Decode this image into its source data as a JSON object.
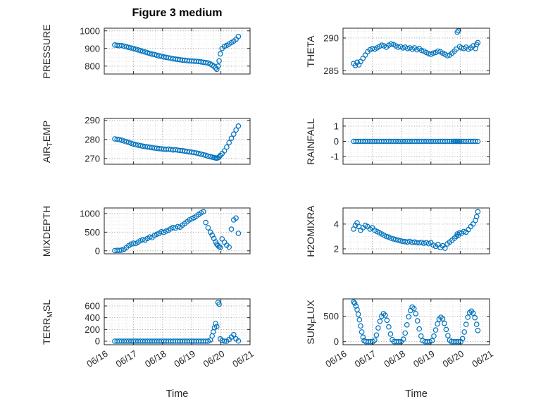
{
  "title": "Figure 3 medium",
  "xlabel": "Time",
  "marker_color": "#0072BD",
  "x_axis": {
    "lim": [
      0,
      5
    ],
    "ticks": [
      0,
      1,
      2,
      3,
      4,
      5
    ],
    "labels": [
      "06/16",
      "06/17",
      "06/18",
      "06/19",
      "06/20",
      "06/21"
    ],
    "minor_step": 0.25
  },
  "chart_data": [
    {
      "type": "scatter",
      "name": "PRESSURE",
      "row": 0,
      "col": 0,
      "ylabel_text": "PRESSURE",
      "ylabel_parts": [
        {
          "t": "PRESSURE"
        }
      ],
      "ylim": [
        755,
        1015
      ],
      "yticks": [
        800,
        900,
        1000
      ],
      "ytick_labels": [
        "800",
        "900",
        "1000"
      ],
      "y_minor_step": 25,
      "x": [
        0.36,
        0.44,
        0.52,
        0.6,
        0.68,
        0.76,
        0.84,
        0.92,
        1.0,
        1.08,
        1.16,
        1.24,
        1.32,
        1.4,
        1.48,
        1.56,
        1.64,
        1.72,
        1.8,
        1.88,
        1.96,
        2.04,
        2.12,
        2.2,
        2.28,
        2.36,
        2.44,
        2.52,
        2.6,
        2.68,
        2.76,
        2.84,
        2.92,
        3.0,
        3.08,
        3.16,
        3.24,
        3.32,
        3.4,
        3.48,
        3.56,
        3.64,
        3.7,
        3.76,
        3.82,
        3.86,
        3.9,
        3.94,
        3.98,
        4.04,
        4.12,
        4.2,
        4.28,
        4.36,
        4.44,
        4.52,
        4.6
      ],
      "y": [
        920,
        918,
        916,
        917,
        913,
        910,
        906,
        903,
        900,
        896,
        892,
        888,
        884,
        880,
        876,
        872,
        868,
        866,
        862,
        858,
        856,
        852,
        850,
        847,
        845,
        842,
        840,
        838,
        836,
        834,
        833,
        831,
        830,
        829,
        828,
        827,
        826,
        824,
        822,
        820,
        818,
        812,
        806,
        800,
        790,
        782,
        800,
        830,
        870,
        900,
        912,
        918,
        925,
        933,
        942,
        952,
        968
      ]
    },
    {
      "type": "scatter",
      "name": "THETA",
      "row": 0,
      "col": 1,
      "ylabel_text": "THETA",
      "ylabel_parts": [
        {
          "t": "THETA"
        }
      ],
      "ylim": [
        284.5,
        291.5
      ],
      "yticks": [
        285,
        290
      ],
      "ytick_labels": [
        "285",
        "290"
      ],
      "y_minor_step": 1,
      "x": [
        0.36,
        0.42,
        0.48,
        0.54,
        0.6,
        0.68,
        0.76,
        0.84,
        0.92,
        1.0,
        1.08,
        1.16,
        1.24,
        1.32,
        1.4,
        1.48,
        1.56,
        1.64,
        1.72,
        1.8,
        1.88,
        1.96,
        2.04,
        2.12,
        2.2,
        2.28,
        2.36,
        2.44,
        2.52,
        2.6,
        2.68,
        2.76,
        2.84,
        2.92,
        3.0,
        3.08,
        3.16,
        3.24,
        3.32,
        3.4,
        3.48,
        3.56,
        3.64,
        3.72,
        3.8,
        3.86,
        3.9,
        3.94,
        3.98,
        4.04,
        4.12,
        4.2,
        4.28,
        4.36,
        4.44,
        4.52,
        4.56,
        4.6
      ],
      "y": [
        286.1,
        285.8,
        286.3,
        285.9,
        286.4,
        286.9,
        287.4,
        287.9,
        288.2,
        288.4,
        288.3,
        288.5,
        288.7,
        288.9,
        288.8,
        288.6,
        288.9,
        289.1,
        289.0,
        288.8,
        288.6,
        288.7,
        288.5,
        288.6,
        288.4,
        288.5,
        288.3,
        288.5,
        288.2,
        288.4,
        288.1,
        288.0,
        287.8,
        287.6,
        287.5,
        287.7,
        287.8,
        288.0,
        287.9,
        287.7,
        287.5,
        287.3,
        287.4,
        287.7,
        288.0,
        288.3,
        290.9,
        291.1,
        288.7,
        288.5,
        288.4,
        288.6,
        288.3,
        288.5,
        288.8,
        288.4,
        289.0,
        289.3
      ]
    },
    {
      "type": "scatter",
      "name": "AIR_TEMP",
      "row": 1,
      "col": 0,
      "ylabel_text": "AIR_TEMP",
      "ylabel_parts": [
        {
          "t": "AIR"
        },
        {
          "t": "T",
          "sub": true
        },
        {
          "t": "EMP"
        }
      ],
      "ylim": [
        267,
        291
      ],
      "yticks": [
        270,
        280,
        290
      ],
      "ytick_labels": [
        "270",
        "280",
        "290"
      ],
      "y_minor_step": 2.5,
      "x": [
        0.36,
        0.44,
        0.52,
        0.6,
        0.68,
        0.76,
        0.84,
        0.92,
        1.0,
        1.08,
        1.16,
        1.24,
        1.32,
        1.4,
        1.48,
        1.56,
        1.64,
        1.72,
        1.8,
        1.88,
        1.96,
        2.04,
        2.12,
        2.2,
        2.28,
        2.36,
        2.44,
        2.52,
        2.6,
        2.68,
        2.76,
        2.84,
        2.92,
        3.0,
        3.08,
        3.16,
        3.24,
        3.32,
        3.4,
        3.48,
        3.56,
        3.64,
        3.7,
        3.76,
        3.82,
        3.86,
        3.9,
        3.94,
        3.98,
        4.04,
        4.12,
        4.2,
        4.28,
        4.36,
        4.44,
        4.52,
        4.6
      ],
      "y": [
        280.3,
        280.1,
        279.9,
        279.6,
        279.2,
        278.8,
        278.4,
        278.0,
        277.6,
        277.3,
        277.0,
        276.8,
        276.5,
        276.3,
        276.1,
        275.9,
        275.7,
        275.5,
        275.4,
        275.2,
        275.1,
        274.9,
        274.8,
        274.9,
        274.7,
        274.5,
        274.6,
        274.4,
        274.2,
        274.1,
        273.9,
        273.7,
        273.5,
        273.3,
        273.1,
        272.9,
        272.6,
        272.3,
        272.0,
        271.7,
        271.3,
        271.0,
        270.7,
        270.5,
        270.3,
        270.2,
        270.4,
        270.9,
        271.6,
        272.6,
        274.0,
        276.0,
        278.3,
        280.6,
        282.8,
        285.0,
        287.0
      ]
    },
    {
      "type": "scatter",
      "name": "RAINFALL",
      "row": 1,
      "col": 1,
      "ylabel_text": "RAINFALL",
      "ylabel_parts": [
        {
          "t": "RAINFALL"
        }
      ],
      "ylim": [
        -1.5,
        1.5
      ],
      "yticks": [
        -1,
        0,
        1
      ],
      "ytick_labels": [
        "-1",
        "0",
        "1"
      ],
      "y_minor_step": 0.25,
      "x": [
        0.36,
        0.44,
        0.52,
        0.6,
        0.68,
        0.76,
        0.84,
        0.92,
        1.0,
        1.08,
        1.16,
        1.24,
        1.32,
        1.4,
        1.48,
        1.56,
        1.64,
        1.72,
        1.8,
        1.88,
        1.96,
        2.04,
        2.12,
        2.2,
        2.28,
        2.36,
        2.44,
        2.52,
        2.6,
        2.68,
        2.76,
        2.84,
        2.92,
        3.0,
        3.08,
        3.16,
        3.24,
        3.32,
        3.4,
        3.48,
        3.56,
        3.64,
        3.7,
        3.76,
        3.82,
        3.86,
        3.9,
        3.94,
        3.98,
        4.04,
        4.12,
        4.2,
        4.28,
        4.36,
        4.44,
        4.52,
        4.6
      ],
      "y": [
        0,
        0,
        0,
        0,
        0,
        0,
        0,
        0,
        0,
        0,
        0,
        0,
        0,
        0,
        0,
        0,
        0,
        0,
        0,
        0,
        0,
        0,
        0,
        0,
        0,
        0,
        0,
        0,
        0,
        0,
        0,
        0,
        0,
        0,
        0,
        0,
        0,
        0,
        0,
        0,
        0,
        0,
        0,
        0,
        0,
        0,
        0,
        0,
        0,
        0,
        0,
        0,
        0,
        0,
        0,
        0,
        0
      ]
    },
    {
      "type": "scatter",
      "name": "MIXDEPTH",
      "row": 2,
      "col": 0,
      "ylabel_text": "MIXDEPTH",
      "ylabel_parts": [
        {
          "t": "MIXDEPTH"
        }
      ],
      "ylim": [
        -80,
        1150
      ],
      "yticks": [
        0,
        500,
        1000
      ],
      "ytick_labels": [
        "0",
        "500",
        "1000"
      ],
      "y_minor_step": 100,
      "x": [
        0.36,
        0.44,
        0.52,
        0.6,
        0.68,
        0.76,
        0.84,
        0.92,
        1.0,
        1.08,
        1.16,
        1.24,
        1.32,
        1.4,
        1.48,
        1.56,
        1.64,
        1.72,
        1.8,
        1.88,
        1.96,
        2.04,
        2.12,
        2.2,
        2.28,
        2.36,
        2.44,
        2.52,
        2.6,
        2.68,
        2.76,
        2.84,
        2.92,
        3.0,
        3.08,
        3.16,
        3.24,
        3.32,
        3.4,
        3.48,
        3.56,
        3.64,
        3.7,
        3.76,
        3.82,
        3.86,
        3.9,
        3.94,
        3.98,
        4.04,
        4.12,
        4.2,
        4.28,
        4.36,
        4.44,
        4.52,
        4.6
      ],
      "y": [
        5,
        10,
        8,
        20,
        45,
        90,
        140,
        180,
        205,
        195,
        235,
        270,
        300,
        290,
        330,
        370,
        355,
        410,
        445,
        470,
        510,
        495,
        530,
        555,
        590,
        625,
        610,
        650,
        635,
        690,
        730,
        780,
        830,
        860,
        890,
        930,
        975,
        1020,
        1050,
        760,
        620,
        500,
        420,
        330,
        240,
        180,
        140,
        110,
        90,
        320,
        230,
        150,
        100,
        580,
        830,
        880,
        470
      ]
    },
    {
      "type": "scatter",
      "name": "H2OMIXRA",
      "row": 2,
      "col": 1,
      "ylabel_text": "H2OMIXRA",
      "ylabel_parts": [
        {
          "t": "H2OMIXRA"
        }
      ],
      "ylim": [
        1.6,
        5.3
      ],
      "yticks": [
        2,
        4
      ],
      "ytick_labels": [
        "2",
        "4"
      ],
      "y_minor_step": 0.5,
      "x": [
        0.36,
        0.42,
        0.48,
        0.54,
        0.6,
        0.68,
        0.76,
        0.84,
        0.92,
        1.0,
        1.08,
        1.16,
        1.24,
        1.32,
        1.4,
        1.48,
        1.56,
        1.64,
        1.72,
        1.8,
        1.88,
        1.96,
        2.04,
        2.12,
        2.2,
        2.28,
        2.36,
        2.44,
        2.52,
        2.6,
        2.68,
        2.76,
        2.84,
        2.92,
        3.0,
        3.08,
        3.16,
        3.24,
        3.32,
        3.4,
        3.48,
        3.56,
        3.64,
        3.72,
        3.8,
        3.86,
        3.9,
        3.94,
        3.98,
        4.04,
        4.12,
        4.2,
        4.28,
        4.36,
        4.44,
        4.52,
        4.56,
        4.6
      ],
      "y": [
        3.6,
        3.9,
        4.1,
        3.8,
        3.5,
        3.7,
        3.9,
        3.8,
        3.6,
        3.7,
        3.5,
        3.4,
        3.3,
        3.2,
        3.1,
        3.0,
        2.95,
        2.85,
        2.8,
        2.75,
        2.7,
        2.65,
        2.6,
        2.58,
        2.55,
        2.6,
        2.52,
        2.55,
        2.5,
        2.48,
        2.52,
        2.45,
        2.5,
        2.42,
        2.5,
        2.3,
        2.2,
        2.35,
        2.1,
        2.25,
        2.05,
        2.4,
        2.55,
        2.7,
        2.85,
        3.0,
        3.2,
        3.1,
        3.3,
        3.25,
        3.4,
        3.35,
        3.55,
        3.8,
        4.0,
        4.3,
        4.6,
        5.0
      ]
    },
    {
      "type": "scatter",
      "name": "TERR_MSL",
      "row": 3,
      "col": 0,
      "ylabel_text": "TERR_MSL",
      "ylabel_parts": [
        {
          "t": "TERR"
        },
        {
          "t": "M",
          "sub": true
        },
        {
          "t": "SL"
        }
      ],
      "ylim": [
        -60,
        720
      ],
      "yticks": [
        0,
        200,
        400,
        600
      ],
      "ytick_labels": [
        "0",
        "200",
        "400",
        "600"
      ],
      "y_minor_step": 50,
      "x": [
        0.36,
        0.44,
        0.52,
        0.6,
        0.68,
        0.76,
        0.84,
        0.92,
        1.0,
        1.08,
        1.16,
        1.24,
        1.32,
        1.4,
        1.48,
        1.56,
        1.64,
        1.72,
        1.8,
        1.88,
        1.96,
        2.04,
        2.12,
        2.2,
        2.28,
        2.36,
        2.44,
        2.52,
        2.6,
        2.68,
        2.76,
        2.84,
        2.92,
        3.0,
        3.08,
        3.16,
        3.24,
        3.32,
        3.4,
        3.48,
        3.56,
        3.64,
        3.7,
        3.74,
        3.78,
        3.82,
        3.86,
        3.9,
        3.94,
        3.98,
        4.04,
        4.12,
        4.2,
        4.28,
        4.36,
        4.44,
        4.52,
        4.6
      ],
      "y": [
        0,
        0,
        0,
        0,
        0,
        0,
        0,
        0,
        0,
        0,
        0,
        0,
        0,
        0,
        0,
        0,
        0,
        0,
        0,
        0,
        0,
        0,
        0,
        0,
        0,
        0,
        0,
        0,
        0,
        0,
        0,
        0,
        0,
        0,
        0,
        0,
        0,
        0,
        0,
        0,
        0,
        20,
        90,
        160,
        230,
        300,
        250,
        660,
        630,
        40,
        10,
        0,
        0,
        30,
        70,
        110,
        40,
        5
      ]
    },
    {
      "type": "scatter",
      "name": "SUN_FLUX",
      "row": 3,
      "col": 1,
      "ylabel_text": "SUN_FLUX",
      "ylabel_parts": [
        {
          "t": "SUN"
        },
        {
          "t": "F",
          "sub": true
        },
        {
          "t": "LUX"
        }
      ],
      "ylim": [
        -60,
        840
      ],
      "yticks": [
        0,
        500
      ],
      "ytick_labels": [
        "0",
        "500"
      ],
      "y_minor_step": 100,
      "x": [
        0.36,
        0.4,
        0.44,
        0.48,
        0.52,
        0.56,
        0.6,
        0.64,
        0.68,
        0.72,
        0.78,
        0.86,
        0.94,
        1.02,
        1.08,
        1.14,
        1.2,
        1.26,
        1.32,
        1.38,
        1.44,
        1.5,
        1.56,
        1.62,
        1.68,
        1.74,
        1.82,
        1.9,
        1.98,
        2.06,
        2.12,
        2.18,
        2.24,
        2.3,
        2.36,
        2.42,
        2.48,
        2.54,
        2.6,
        2.66,
        2.72,
        2.8,
        2.88,
        2.96,
        3.04,
        3.1,
        3.16,
        3.22,
        3.28,
        3.34,
        3.4,
        3.46,
        3.52,
        3.58,
        3.64,
        3.7,
        3.78,
        3.86,
        3.94,
        4.02,
        4.08,
        4.14,
        4.2,
        4.26,
        4.32,
        4.38,
        4.44,
        4.5,
        4.56,
        4.6
      ],
      "y": [
        780,
        755,
        700,
        630,
        540,
        430,
        310,
        190,
        90,
        20,
        0,
        0,
        0,
        0,
        30,
        130,
        270,
        400,
        500,
        550,
        520,
        420,
        290,
        150,
        40,
        0,
        0,
        0,
        0,
        50,
        170,
        330,
        490,
        610,
        680,
        650,
        550,
        410,
        250,
        110,
        20,
        0,
        0,
        0,
        20,
        110,
        230,
        350,
        440,
        480,
        450,
        360,
        240,
        120,
        30,
        0,
        0,
        0,
        0,
        0,
        60,
        190,
        340,
        480,
        570,
        600,
        560,
        470,
        340,
        220
      ]
    }
  ]
}
